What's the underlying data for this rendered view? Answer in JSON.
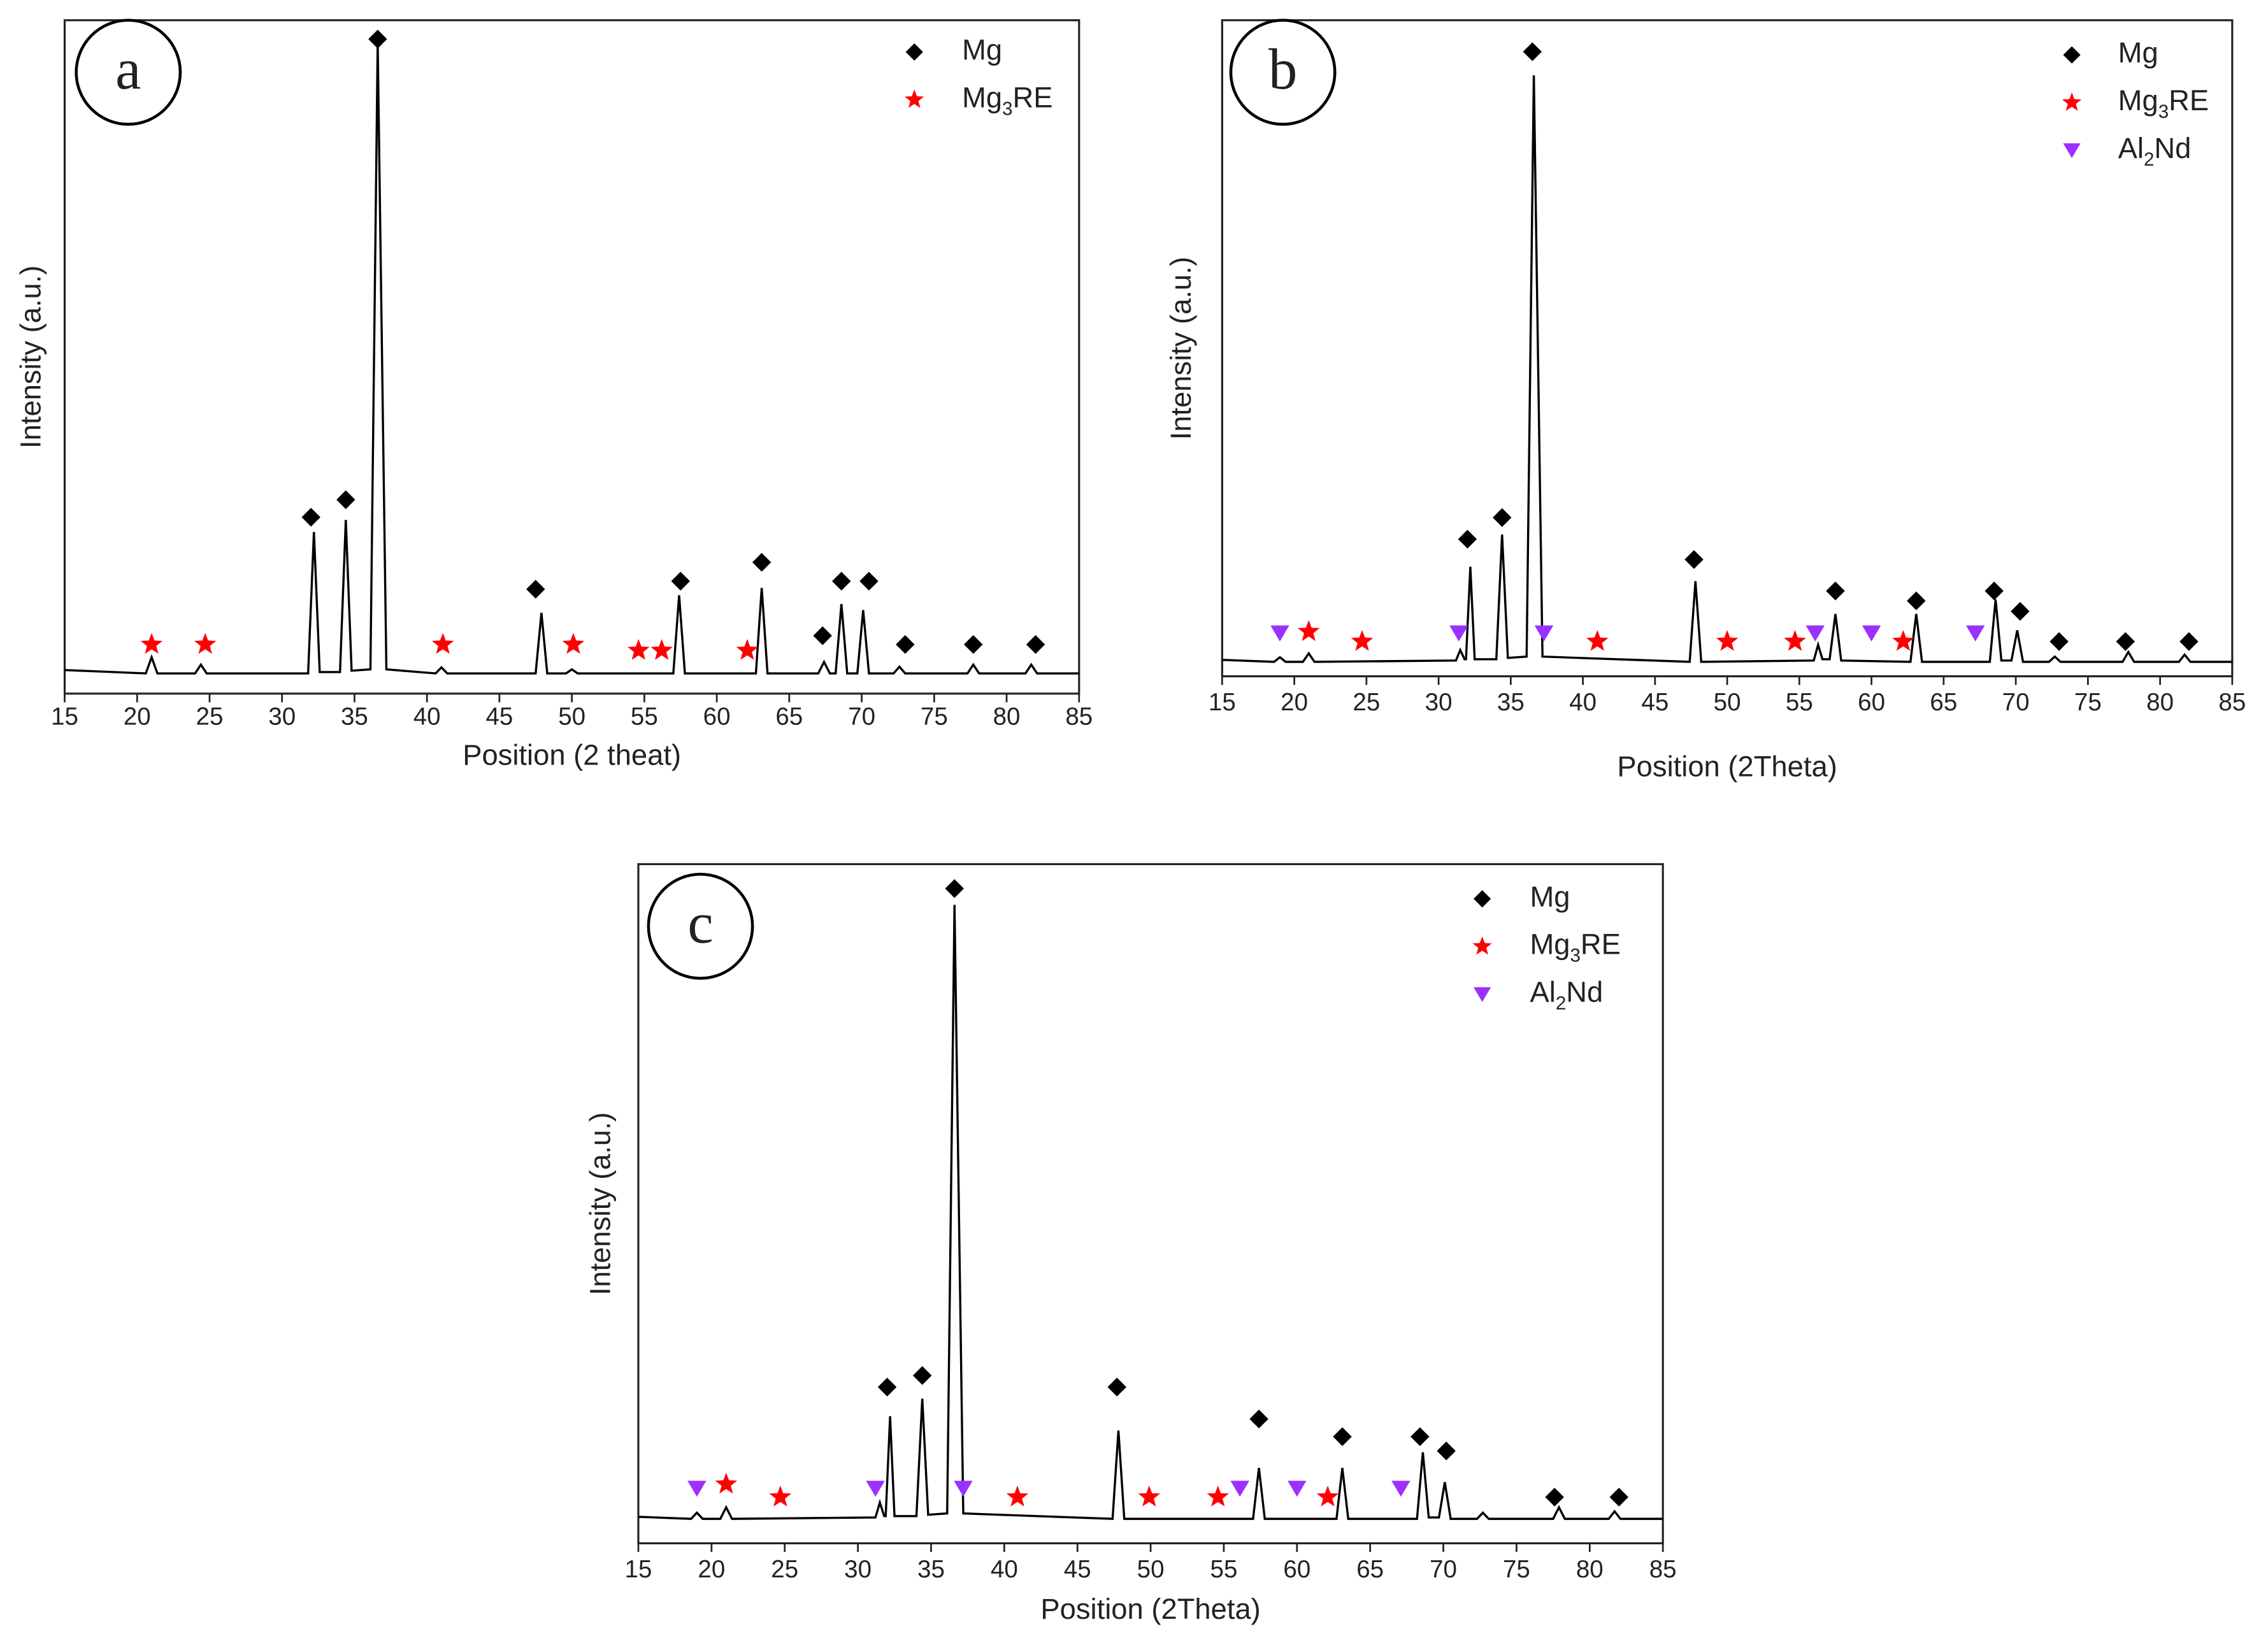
{
  "chart_data": [
    {
      "type": "line",
      "label": "a",
      "xlabel": "Position (2 theat)",
      "ylabel": "Intensity (a.u.)",
      "xlim": [
        15,
        85
      ],
      "xticks": [
        15,
        20,
        25,
        30,
        35,
        40,
        45,
        50,
        55,
        60,
        65,
        70,
        75,
        80,
        85
      ],
      "ylim": [
        0,
        100
      ],
      "color": "#000000",
      "x": [
        15,
        20.6,
        21,
        21.4,
        24,
        24.4,
        24.8,
        31.8,
        32.2,
        32.6,
        34,
        34.4,
        34.8,
        36.1,
        36.6,
        37.2,
        40.6,
        41,
        41.4,
        47.5,
        47.9,
        48.3,
        49.6,
        50,
        50.4,
        57,
        57.4,
        57.8,
        62.7,
        63.1,
        63.5,
        67,
        67.4,
        67.8,
        68.2,
        68.6,
        69,
        69.7,
        70.1,
        70.5,
        72.2,
        72.6,
        73,
        77.3,
        77.7,
        78.1,
        81.3,
        81.7,
        82.1,
        85
      ],
      "values": [
        3.5,
        3,
        5.4,
        3,
        3,
        4.3,
        3,
        3,
        24,
        3.2,
        3.2,
        25.8,
        3.4,
        3.6,
        96.6,
        3.6,
        3,
        3.9,
        3,
        3,
        12,
        3,
        3,
        3.6,
        3,
        3,
        14.6,
        3,
        3,
        15.7,
        3,
        3,
        4.7,
        3,
        3,
        13.3,
        3,
        3,
        12.4,
        3,
        3,
        4,
        3,
        3,
        4.3,
        3,
        3,
        4.3,
        3,
        3
      ],
      "series": [
        {
          "name": "Mg",
          "color": "#000000",
          "shape": "diamond",
          "x": [
            32.0,
            34.4,
            36.6,
            47.5,
            57.5,
            63.1,
            67.3,
            68.6,
            70.5,
            73.0,
            77.7,
            82.0
          ],
          "values": [
            26.2,
            28.8,
            97.2,
            15.5,
            16.7,
            19.5,
            8.6,
            16.7,
            16.7,
            7.3,
            7.3,
            7.3
          ]
        },
        {
          "name": "Mg3RE",
          "color": "#ff0000",
          "shape": "star",
          "x": [
            21,
            24.7,
            41.1,
            50.1,
            54.6,
            56.2,
            62.1
          ],
          "values": [
            7.3,
            7.3,
            7.3,
            7.3,
            6.4,
            6.4,
            6.4
          ]
        }
      ]
    },
    {
      "type": "line",
      "label": "b",
      "xlabel": "Position (2Theta)",
      "ylabel": "Intensity (a.u.)",
      "xlim": [
        15,
        85
      ],
      "xticks": [
        15,
        20,
        25,
        30,
        35,
        40,
        45,
        50,
        55,
        60,
        65,
        70,
        75,
        80,
        85
      ],
      "ylim": [
        0,
        100
      ],
      "color": "#000000",
      "x": [
        15,
        18.6,
        19,
        19.4,
        20.6,
        21,
        21.4,
        31.2,
        31.5,
        31.8,
        31.9,
        32.2,
        32.5,
        34,
        34.4,
        34.8,
        36.1,
        36.6,
        37.2,
        47.4,
        47.8,
        48.2,
        56,
        56.3,
        56.6,
        57.1,
        57.5,
        57.9,
        62.7,
        63.1,
        63.5,
        68.2,
        68.6,
        69,
        69.7,
        70.1,
        70.5,
        72.3,
        72.7,
        73.1,
        77.4,
        77.8,
        78.2,
        81.3,
        81.7,
        82.1,
        85
      ],
      "values": [
        2.5,
        2.2,
        2.9,
        2.2,
        2.2,
        3.5,
        2.2,
        2.4,
        4,
        2.6,
        2.6,
        16.7,
        2.6,
        2.6,
        21.6,
        2.8,
        3,
        91.6,
        3,
        2.2,
        14.5,
        2.2,
        2.4,
        4.8,
        2.6,
        2.6,
        9.5,
        2.4,
        2.2,
        9.5,
        2.2,
        2.2,
        11.7,
        2.4,
        2.4,
        7,
        2.2,
        2.2,
        3,
        2.2,
        2.2,
        3.7,
        2.2,
        2.2,
        3.3,
        2.2,
        2.2
      ],
      "series": [
        {
          "name": "Mg",
          "color": "#000000",
          "shape": "diamond",
          "x": [
            32.0,
            34.4,
            36.5,
            47.7,
            57.5,
            63.1,
            68.5,
            70.3,
            73.0,
            77.6,
            82.0
          ],
          "values": [
            20.9,
            24.2,
            95.2,
            17.8,
            13,
            11.5,
            13,
            9.9,
            5.3,
            5.3,
            5.3
          ]
        },
        {
          "name": "Mg3RE",
          "color": "#ff0000",
          "shape": "star",
          "x": [
            21.0,
            24.7,
            41.0,
            50.0,
            54.7,
            62.2
          ],
          "values": [
            6.8,
            5.3,
            5.3,
            5.3,
            5.3,
            5.3
          ]
        },
        {
          "name": "Al2Nd",
          "color": "#9b30ff",
          "shape": "triangle",
          "x": [
            19.0,
            31.4,
            37.3,
            56.1,
            60.0,
            67.2
          ],
          "values": [
            6.6,
            6.6,
            6.6,
            6.6,
            6.6,
            6.6
          ]
        }
      ]
    },
    {
      "type": "line",
      "label": "c",
      "xlabel": "Position (2Theta)",
      "ylabel": "Intensity (a.u.)",
      "xlim": [
        15,
        85
      ],
      "xticks": [
        15,
        20,
        25,
        30,
        35,
        40,
        45,
        50,
        55,
        60,
        65,
        70,
        75,
        80,
        85
      ],
      "ylim": [
        0,
        100
      ],
      "color": "#000000",
      "x": [
        15,
        18.6,
        19,
        19.4,
        20.6,
        21,
        21.4,
        31.2,
        31.5,
        31.8,
        31.9,
        32.2,
        32.5,
        34,
        34.4,
        34.8,
        36.1,
        36.6,
        37.2,
        47.4,
        47.8,
        48.2,
        57,
        57.4,
        57.8,
        62.7,
        63.1,
        63.5,
        68.2,
        68.6,
        69,
        69.7,
        70.1,
        70.5,
        72.3,
        72.7,
        73.1,
        77.5,
        77.9,
        78.3,
        81.3,
        81.7,
        82.1,
        85
      ],
      "values": [
        3.9,
        3.6,
        4.5,
        3.6,
        3.6,
        5.3,
        3.6,
        3.8,
        6,
        4,
        4,
        18.7,
        4,
        4,
        21.3,
        4.2,
        4.4,
        94,
        4.4,
        3.6,
        16.6,
        3.6,
        3.6,
        11.1,
        3.6,
        3.6,
        11.1,
        3.6,
        3.6,
        13.4,
        3.8,
        3.8,
        9,
        3.6,
        3.6,
        4.5,
        3.6,
        3.6,
        5.3,
        3.6,
        3.6,
        4.7,
        3.6,
        3.6
      ],
      "series": [
        {
          "name": "Mg",
          "color": "#000000",
          "shape": "diamond",
          "x": [
            32.0,
            34.4,
            36.6,
            47.7,
            57.4,
            63.1,
            68.4,
            70.2,
            77.6,
            82.0
          ],
          "values": [
            23,
            24.7,
            96.4,
            23,
            18.3,
            15.7,
            15.7,
            13.6,
            6.8,
            6.8
          ]
        },
        {
          "name": "Mg3RE",
          "color": "#ff0000",
          "shape": "star",
          "x": [
            21.0,
            24.7,
            40.9,
            49.9,
            54.6,
            62.1
          ],
          "values": [
            8.7,
            6.8,
            6.8,
            6.8,
            6.8,
            6.8
          ]
        },
        {
          "name": "Al2Nd",
          "color": "#9b30ff",
          "shape": "triangle",
          "x": [
            19.0,
            31.2,
            37.2,
            56.1,
            60.0,
            67.1
          ],
          "values": [
            8.1,
            8.1,
            8.1,
            8.1,
            8.1,
            8.1
          ]
        }
      ]
    }
  ]
}
